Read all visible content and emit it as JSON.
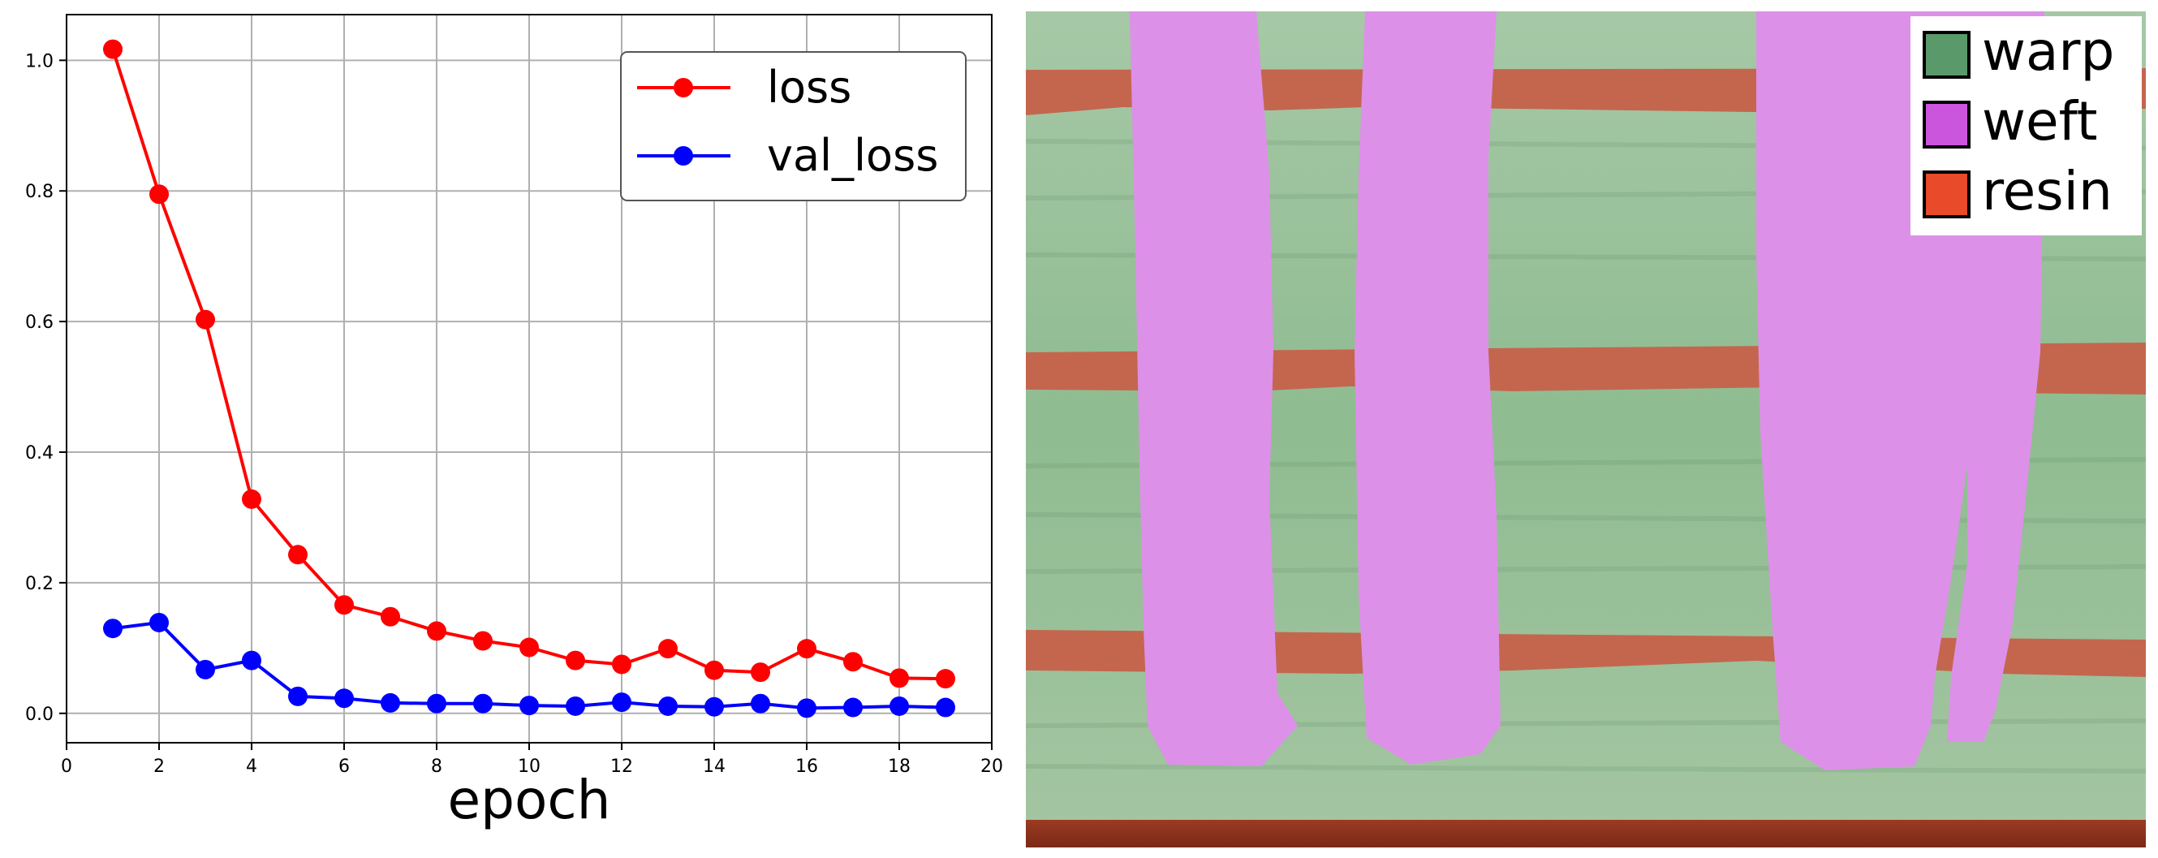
{
  "chart_data": {
    "type": "line",
    "title": "",
    "xlabel": "epoch",
    "ylabel": "",
    "xlim": [
      0,
      20
    ],
    "ylim": [
      -0.045,
      1.07
    ],
    "xticks": [
      0,
      2,
      4,
      6,
      8,
      10,
      12,
      14,
      16,
      18,
      20
    ],
    "xtick_labels": [
      "0",
      "2",
      "4",
      "6",
      "8",
      "10",
      "12",
      "14",
      "16",
      "18",
      "20"
    ],
    "yticks": [
      0.0,
      0.2,
      0.4,
      0.6,
      0.8,
      1.0
    ],
    "ytick_labels": [
      "0.0",
      "0.2",
      "0.4",
      "0.6",
      "0.8",
      "1.0"
    ],
    "grid": true,
    "legend_position": "top-right",
    "x": [
      1,
      2,
      3,
      4,
      5,
      6,
      7,
      8,
      9,
      10,
      11,
      12,
      13,
      14,
      15,
      16,
      17,
      18,
      19
    ],
    "series": [
      {
        "name": "loss",
        "color": "#ff0000",
        "values": [
          1.017,
          0.795,
          0.603,
          0.328,
          0.243,
          0.166,
          0.148,
          0.126,
          0.111,
          0.101,
          0.081,
          0.075,
          0.099,
          0.066,
          0.063,
          0.099,
          0.079,
          0.054,
          0.053
        ]
      },
      {
        "name": "val_loss",
        "color": "#0000ff",
        "values": [
          0.13,
          0.139,
          0.067,
          0.081,
          0.026,
          0.023,
          0.016,
          0.015,
          0.015,
          0.012,
          0.011,
          0.017,
          0.011,
          0.01,
          0.015,
          0.008,
          0.009,
          0.011,
          0.009
        ]
      }
    ]
  },
  "segmentation": {
    "legend": [
      {
        "label": "warp",
        "color": "#5a9a6a"
      },
      {
        "label": "weft",
        "color": "#cc55dd"
      },
      {
        "label": "resin",
        "color": "#e84a2a"
      }
    ]
  }
}
